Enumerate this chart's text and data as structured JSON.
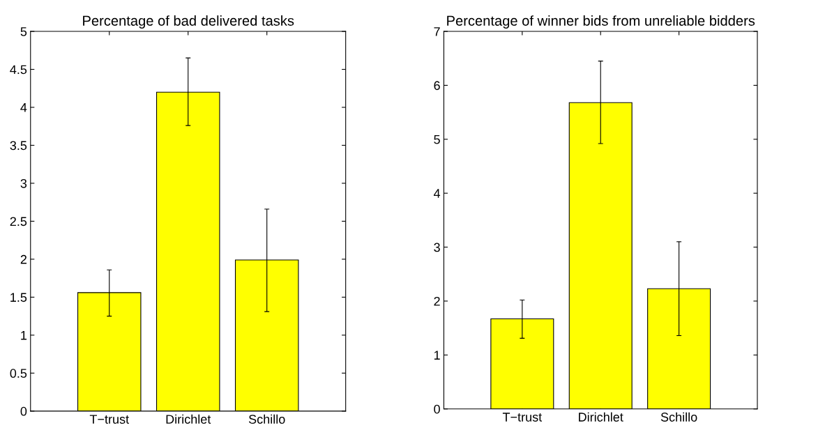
{
  "chart_data": [
    {
      "type": "bar",
      "title": "Percentage of bad delivered tasks",
      "categories": [
        "T−trust",
        "Dirichlet",
        "Schillo"
      ],
      "values": [
        1.56,
        4.2,
        1.99
      ],
      "color": "#ffff00",
      "errors": [
        [
          1.25,
          1.86
        ],
        [
          3.76,
          4.65
        ],
        [
          1.31,
          2.66
        ]
      ],
      "ylim": [
        0,
        5
      ],
      "yticks": [
        0,
        0.5,
        1,
        1.5,
        2,
        2.5,
        3,
        3.5,
        4,
        4.5,
        5
      ],
      "grid": false,
      "legend": false
    },
    {
      "type": "bar",
      "title": "Percentage of winner bids from unreliable bidders",
      "categories": [
        "T−trust",
        "Dirichlet",
        "Schillo"
      ],
      "values": [
        1.67,
        5.68,
        2.23
      ],
      "color": "#ffff00",
      "errors": [
        [
          1.31,
          2.02
        ],
        [
          4.92,
          6.45
        ],
        [
          1.36,
          3.1
        ]
      ],
      "ylim": [
        0,
        7
      ],
      "yticks": [
        0,
        1,
        2,
        3,
        4,
        5,
        6,
        7
      ],
      "grid": false,
      "legend": false
    }
  ]
}
